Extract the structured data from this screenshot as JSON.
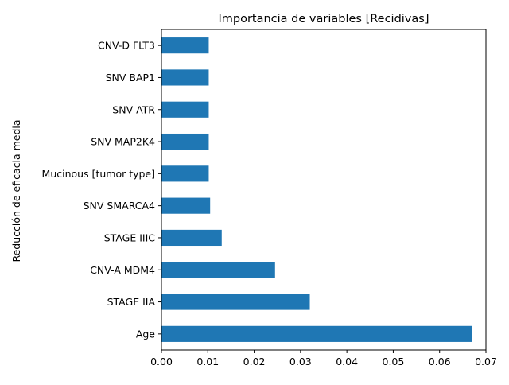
{
  "chart_data": {
    "type": "bar",
    "orientation": "horizontal",
    "title": "Importancia de variables [Recidivas]",
    "xlabel": "",
    "ylabel": "Reducción de eficacia media",
    "categories": [
      "Age",
      "STAGE IIA",
      "CNV-A MDM4",
      "STAGE IIIC",
      "SNV SMARCA4",
      "Mucinous [tumor type]",
      "SNV MAP2K4",
      "SNV ATR",
      "SNV BAP1",
      "CNV-D FLT3"
    ],
    "values": [
      0.067,
      0.032,
      0.0245,
      0.013,
      0.0105,
      0.0102,
      0.0102,
      0.0102,
      0.0102,
      0.0102
    ],
    "xlim": [
      0,
      0.07
    ],
    "xticks": [
      "0.00",
      "0.01",
      "0.02",
      "0.03",
      "0.04",
      "0.05",
      "0.06",
      "0.07"
    ],
    "grid": false,
    "legend": "none",
    "bar_color": "#1f77b4"
  }
}
